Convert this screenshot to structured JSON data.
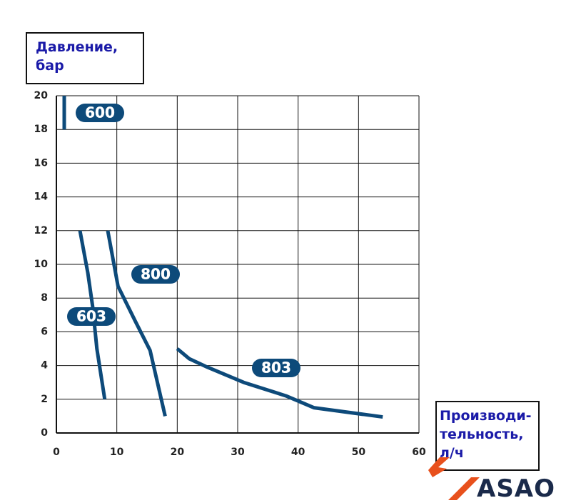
{
  "chart_data": {
    "type": "line",
    "y_label": "Давление,\nбар",
    "x_label": "Производи-\nтельность,\nл/ч",
    "xlim": [
      0,
      60
    ],
    "xticks": [
      0,
      10,
      20,
      30,
      40,
      50,
      60
    ],
    "ylim": [
      0,
      20
    ],
    "yticks": [
      0,
      2,
      4,
      6,
      8,
      10,
      12,
      14,
      16,
      18,
      20
    ],
    "grid": true,
    "series": [
      {
        "name": "600",
        "color": "#0d4a7a",
        "x": [
          1.3,
          1.3
        ],
        "values": [
          18,
          20
        ]
      },
      {
        "name": "603",
        "color": "#0d4a7a",
        "x": [
          3.9,
          5.2,
          6.0,
          6.7,
          8.0
        ],
        "values": [
          12,
          9.5,
          7.5,
          5,
          2
        ]
      },
      {
        "name": "800",
        "color": "#0d4a7a",
        "x": [
          8.5,
          10.2,
          13.1,
          15.5,
          18.0
        ],
        "values": [
          12,
          8.7,
          6.6,
          4.9,
          1
        ]
      },
      {
        "name": "803",
        "color": "#0d4a7a",
        "x": [
          20,
          22,
          25,
          31,
          38,
          42.6,
          54
        ],
        "values": [
          5,
          4.4,
          3.9,
          3,
          2.2,
          1.5,
          0.95
        ]
      }
    ]
  },
  "logo": "ASAO"
}
